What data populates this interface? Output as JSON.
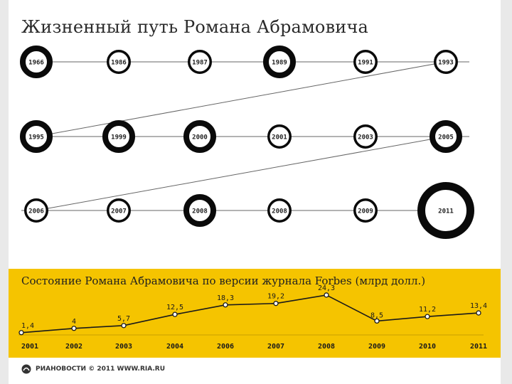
{
  "title": "Жизненный путь Романа Абрамовича",
  "colors": {
    "panel": "#f5c400",
    "ring": "#0a0a0a",
    "line": "#666666"
  },
  "timeline": {
    "rows": [
      {
        "years": [
          "1966",
          "1986",
          "1987",
          "1989",
          "1991",
          "1993"
        ],
        "sizes": [
          "l",
          "m",
          "m",
          "l",
          "m",
          "m"
        ]
      },
      {
        "years": [
          "1995",
          "1999",
          "2000",
          "2001",
          "2003",
          "2005"
        ],
        "sizes": [
          "l",
          "l",
          "l",
          "m",
          "m",
          "l"
        ]
      },
      {
        "years": [
          "2006",
          "2007",
          "2008",
          "2008",
          "2009",
          "2011"
        ],
        "sizes": [
          "m",
          "m",
          "l",
          "m",
          "m",
          "xl"
        ]
      }
    ]
  },
  "chart_data": {
    "type": "line",
    "title": "Состояние Романа Абрамовича по версии журнала Forbes (млрд долл.)",
    "categories": [
      "2001",
      "2002",
      "2003",
      "2004",
      "2006",
      "2007",
      "2008",
      "2009",
      "2010",
      "2011"
    ],
    "values": [
      1.4,
      4,
      5.7,
      12.5,
      18.3,
      19.2,
      24.3,
      8.5,
      11.2,
      13.4
    ],
    "labels": [
      "1,4",
      "4",
      "5,7",
      "12,5",
      "18,3",
      "19,2",
      "24,3",
      "8,5",
      "11,2",
      "13,4"
    ],
    "ylim": [
      0,
      26
    ],
    "xlabel": "",
    "ylabel": "",
    "grid": false,
    "legend": "none"
  },
  "footer": {
    "text": "РИАНОВОСТИ © 2011 WWW.RIA.RU"
  }
}
